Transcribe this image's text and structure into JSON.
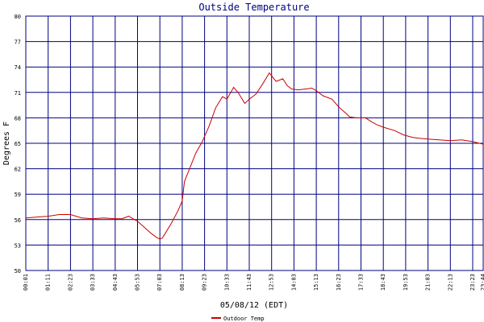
{
  "chart_data": {
    "type": "line",
    "title": "Outside Temperature",
    "xlabel": "05/08/12 (EDT)",
    "ylabel": "Degrees F",
    "grid": true,
    "ylim": [
      50,
      80
    ],
    "yticks": [
      "50",
      "53",
      "56",
      "59",
      "62",
      "65",
      "68",
      "71",
      "74",
      "77",
      "80"
    ],
    "xticks": [
      "00:01",
      "01:11",
      "02:23",
      "03:33",
      "04:43",
      "05:53",
      "07:03",
      "08:13",
      "09:23",
      "10:33",
      "11:43",
      "12:53",
      "14:03",
      "15:13",
      "16:23",
      "17:33",
      "18:43",
      "19:53",
      "21:03",
      "22:13",
      "23:23",
      "23:44"
    ],
    "legend": {
      "position": "bottom-left"
    },
    "series": [
      {
        "name": "Outdoor Temp",
        "color": "#cc0000",
        "x_index": [
          0,
          0.5,
          1.0,
          1.5,
          2.0,
          2.5,
          3.0,
          3.5,
          4.0,
          4.3,
          4.6,
          5.0,
          5.3,
          5.6,
          5.85,
          6.0,
          6.1,
          6.2,
          6.5,
          6.8,
          7.0,
          7.1,
          7.3,
          7.6,
          7.9,
          8.2,
          8.5,
          8.8,
          9.0,
          9.3,
          9.5,
          9.8,
          10.0,
          10.3,
          10.6,
          10.9,
          11.2,
          11.5,
          11.7,
          11.9,
          12.2,
          12.5,
          12.8,
          13.0,
          13.3,
          13.7,
          14.0,
          14.3,
          14.5,
          14.8,
          15.2,
          15.5,
          15.7,
          16.0,
          16.5,
          16.9,
          17.3,
          17.6,
          18.0,
          18.5,
          19.0,
          19.5,
          20.0,
          20.3,
          20.6,
          20.8
        ],
        "values": [
          56.2,
          56.3,
          56.4,
          56.6,
          56.6,
          56.2,
          56.1,
          56.2,
          56.1,
          56.1,
          56.4,
          55.8,
          55.1,
          54.4,
          53.9,
          53.7,
          53.8,
          54.2,
          55.5,
          57.0,
          58.2,
          60.5,
          61.8,
          63.8,
          65.2,
          67.0,
          69.2,
          70.5,
          70.2,
          71.6,
          71.0,
          69.7,
          70.2,
          70.8,
          72.0,
          73.3,
          72.3,
          72.6,
          71.8,
          71.4,
          71.3,
          71.4,
          71.5,
          71.2,
          70.6,
          70.2,
          69.3,
          68.6,
          68.1,
          68.0,
          68.0,
          67.5,
          67.2,
          66.9,
          66.5,
          66.0,
          65.7,
          65.6,
          65.5,
          65.4,
          65.3,
          65.4,
          65.2,
          65.0,
          64.9,
          64.9
        ]
      }
    ]
  }
}
